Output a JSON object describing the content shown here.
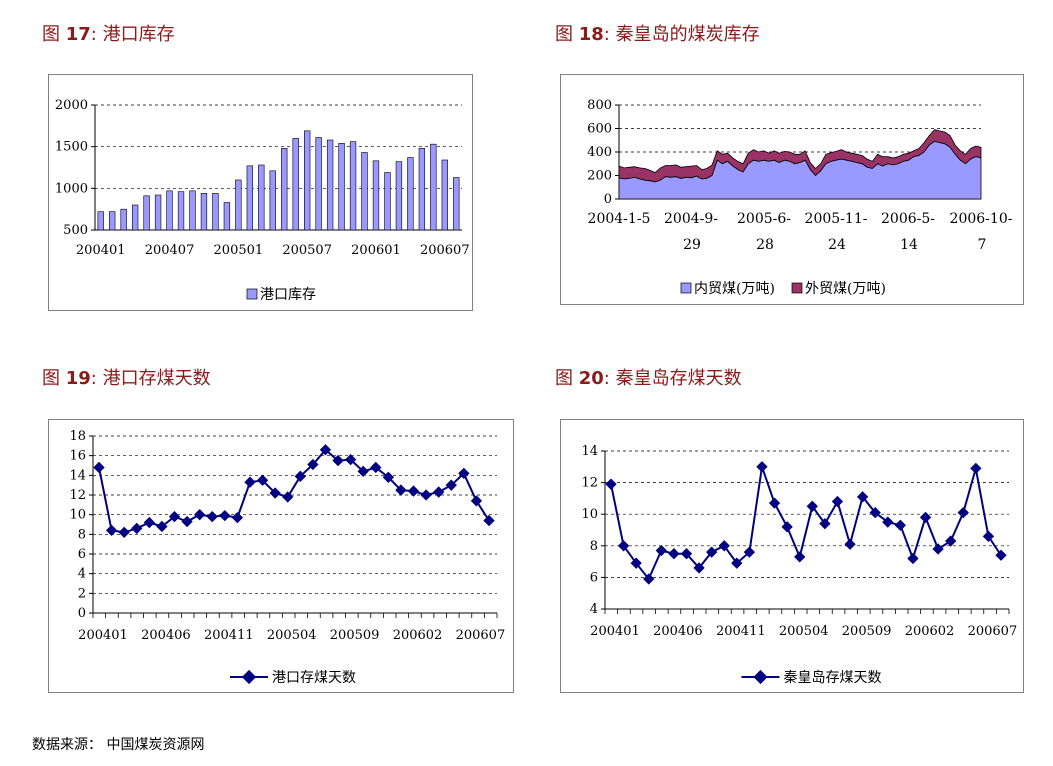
{
  "figures": [
    {
      "prefix": "图 ",
      "num": "17",
      "title": ":  港口库存"
    },
    {
      "prefix": "图 ",
      "num": "18",
      "title": ":  秦皇岛的煤炭库存"
    },
    {
      "prefix": "图 ",
      "num": "19",
      "title": ":  港口存煤天数"
    },
    {
      "prefix": "图 ",
      "num": "20",
      "title": ":  秦皇岛存煤天数"
    }
  ],
  "source": "数据来源：  中国煤炭资源网",
  "colors": {
    "bar_fill": "#9999ff",
    "domestic_fill": "#9999ff",
    "foreign_fill": "#993366",
    "line": "#000080",
    "title": "#8b1a1a"
  },
  "chart_data": [
    {
      "type": "bar",
      "categories": [
        "200401",
        "200402",
        "200403",
        "200404",
        "200405",
        "200406",
        "200407",
        "200408",
        "200409",
        "200410",
        "200411",
        "200412",
        "200501",
        "200502",
        "200503",
        "200504",
        "200505",
        "200506",
        "200507",
        "200508",
        "200509",
        "200510",
        "200511",
        "200512",
        "200601",
        "200602",
        "200603",
        "200604",
        "200605",
        "200606",
        "200607",
        "200608"
      ],
      "xtick_labels": [
        "200401",
        "200407",
        "200501",
        "200507",
        "200601",
        "200607"
      ],
      "yticks": [
        "500",
        "1000",
        "1500",
        "2000"
      ],
      "ylim": [
        500,
        2000
      ],
      "series": [
        {
          "name": "港口库存",
          "values": [
            720,
            720,
            750,
            800,
            910,
            920,
            970,
            960,
            970,
            940,
            940,
            830,
            1100,
            1270,
            1280,
            1210,
            1480,
            1600,
            1690,
            1610,
            1580,
            1540,
            1560,
            1430,
            1330,
            1190,
            1320,
            1370,
            1480,
            1530,
            1340,
            1130
          ]
        }
      ],
      "legend": "bottom",
      "grid": true
    },
    {
      "type": "area",
      "xtick_labels": [
        [
          "2004-1-5",
          ""
        ],
        [
          "2004-9-",
          "29"
        ],
        [
          "2005-6-",
          "28"
        ],
        [
          "2005-11-",
          "24"
        ],
        [
          "2006-5-",
          "14"
        ],
        [
          "2006-10-",
          "7"
        ]
      ],
      "yticks": [
        "0",
        "200",
        "400",
        "600",
        "800"
      ],
      "ylim": [
        0,
        800
      ],
      "stacked": true,
      "series": [
        {
          "name": "内贸煤(万吨)",
          "values": [
            180,
            170,
            175,
            185,
            170,
            160,
            155,
            145,
            160,
            190,
            185,
            190,
            175,
            185,
            180,
            195,
            170,
            175,
            200,
            330,
            300,
            320,
            280,
            250,
            230,
            300,
            330,
            320,
            330,
            320,
            330,
            310,
            330,
            320,
            300,
            310,
            330,
            250,
            200,
            240,
            300,
            320,
            330,
            340,
            330,
            320,
            310,
            300,
            270,
            260,
            300,
            280,
            300,
            290,
            300,
            320,
            330,
            360,
            370,
            400,
            460,
            490,
            480,
            470,
            440,
            380,
            330,
            300,
            340,
            360,
            350
          ]
        },
        {
          "name": "外贸煤(万吨)",
          "values": [
            100,
            95,
            95,
            90,
            95,
            100,
            90,
            80,
            105,
            95,
            100,
            100,
            95,
            90,
            100,
            90,
            80,
            85,
            90,
            80,
            80,
            70,
            70,
            70,
            70,
            90,
            90,
            80,
            80,
            70,
            80,
            80,
            75,
            80,
            80,
            70,
            80,
            60,
            60,
            60,
            80,
            75,
            75,
            80,
            70,
            70,
            70,
            70,
            70,
            60,
            80,
            80,
            60,
            60,
            60,
            60,
            60,
            50,
            60,
            80,
            80,
            100,
            100,
            100,
            100,
            80,
            80,
            80,
            90,
            90,
            90
          ]
        }
      ],
      "legend": "bottom",
      "grid": true
    },
    {
      "type": "line",
      "categories": [
        "200401",
        "200402",
        "200403",
        "200404",
        "200405",
        "200406",
        "200407",
        "200408",
        "200409",
        "200410",
        "200411",
        "200412",
        "200501",
        "200502",
        "200503",
        "200504",
        "200505",
        "200506",
        "200507",
        "200508",
        "200509",
        "200510",
        "200511",
        "200512",
        "200601",
        "200602",
        "200603",
        "200604",
        "200605",
        "200606",
        "200607",
        "200608"
      ],
      "xtick_labels": [
        "200401",
        "200406",
        "200411",
        "200504",
        "200509",
        "200602",
        "200607"
      ],
      "yticks": [
        "0",
        "2",
        "4",
        "6",
        "8",
        "10",
        "12",
        "14",
        "16",
        "18"
      ],
      "ylim": [
        0,
        18
      ],
      "series": [
        {
          "name": "港口存煤天数",
          "values": [
            14.8,
            8.4,
            8.2,
            8.6,
            9.2,
            8.8,
            9.8,
            9.3,
            10.0,
            9.8,
            9.9,
            9.7,
            13.3,
            13.5,
            12.2,
            11.8,
            13.9,
            15.1,
            16.6,
            15.5,
            15.6,
            14.4,
            14.8,
            13.8,
            12.5,
            12.4,
            12.0,
            12.3,
            13.0,
            14.2,
            11.4,
            9.4
          ]
        }
      ],
      "legend": "bottom",
      "grid": true
    },
    {
      "type": "line",
      "categories": [
        "200401",
        "200402",
        "200403",
        "200404",
        "200405",
        "200406",
        "200407",
        "200408",
        "200409",
        "200410",
        "200411",
        "200412",
        "200501",
        "200502",
        "200503",
        "200504",
        "200505",
        "200506",
        "200507",
        "200508",
        "200509",
        "200510",
        "200511",
        "200512",
        "200601",
        "200602",
        "200603",
        "200604",
        "200605",
        "200606",
        "200607",
        "200608"
      ],
      "xtick_labels": [
        "200401",
        "200406",
        "200411",
        "200504",
        "200509",
        "200602",
        "200607"
      ],
      "yticks": [
        "4",
        "6",
        "8",
        "10",
        "12",
        "14"
      ],
      "ylim": [
        4,
        14
      ],
      "series": [
        {
          "name": "秦皇岛存煤天数",
          "values": [
            11.9,
            8.0,
            6.9,
            5.9,
            7.7,
            7.5,
            7.5,
            6.6,
            7.6,
            8.0,
            6.9,
            7.6,
            13.0,
            10.7,
            9.2,
            7.3,
            10.5,
            9.4,
            10.8,
            8.1,
            11.1,
            10.1,
            9.5,
            9.3,
            7.2,
            9.8,
            7.8,
            8.3,
            10.1,
            12.9,
            8.6,
            7.4
          ]
        }
      ],
      "legend": "bottom",
      "grid": true
    }
  ]
}
